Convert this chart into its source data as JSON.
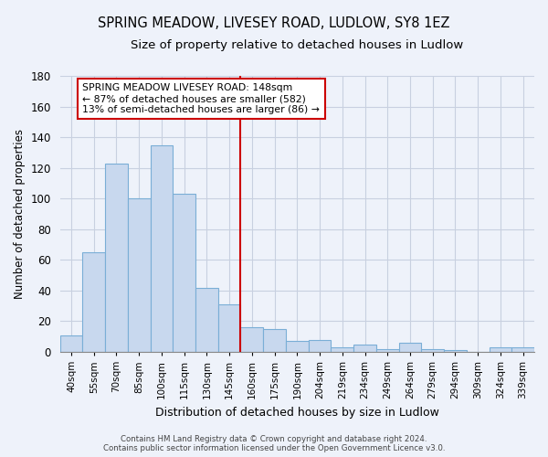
{
  "title": "SPRING MEADOW, LIVESEY ROAD, LUDLOW, SY8 1EZ",
  "subtitle": "Size of property relative to detached houses in Ludlow",
  "xlabel": "Distribution of detached houses by size in Ludlow",
  "ylabel": "Number of detached properties",
  "bar_labels": [
    "40sqm",
    "55sqm",
    "70sqm",
    "85sqm",
    "100sqm",
    "115sqm",
    "130sqm",
    "145sqm",
    "160sqm",
    "175sqm",
    "190sqm",
    "204sqm",
    "219sqm",
    "234sqm",
    "249sqm",
    "264sqm",
    "279sqm",
    "294sqm",
    "309sqm",
    "324sqm",
    "339sqm"
  ],
  "bar_values": [
    11,
    65,
    123,
    100,
    135,
    103,
    42,
    31,
    16,
    15,
    7,
    8,
    3,
    5,
    2,
    6,
    2,
    1,
    0,
    3,
    3
  ],
  "bar_color": "#c8d8ee",
  "bar_edge_color": "#7aaed6",
  "vline_color": "#cc0000",
  "annotation_text": "SPRING MEADOW LIVESEY ROAD: 148sqm\n← 87% of detached houses are smaller (582)\n13% of semi-detached houses are larger (86) →",
  "annotation_box_color": "#ffffff",
  "annotation_box_edge": "#cc0000",
  "ylim": [
    0,
    180
  ],
  "yticks": [
    0,
    20,
    40,
    60,
    80,
    100,
    120,
    140,
    160,
    180
  ],
  "footer_line1": "Contains HM Land Registry data © Crown copyright and database right 2024.",
  "footer_line2": "Contains public sector information licensed under the Open Government Licence v3.0.",
  "bg_color": "#eef2fa",
  "grid_color": "#c8d0e0",
  "title_fontsize": 10.5,
  "subtitle_fontsize": 9.5
}
